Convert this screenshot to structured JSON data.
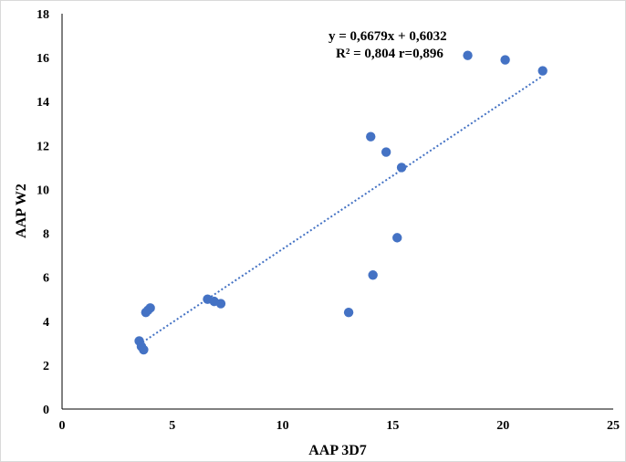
{
  "chart_data": {
    "type": "scatter",
    "title": "",
    "xlabel": "AAP 3D7",
    "ylabel": "AAP W2",
    "xlim": [
      0,
      25
    ],
    "ylim": [
      0,
      18
    ],
    "x_ticks": [
      0,
      5,
      10,
      15,
      20,
      25
    ],
    "y_ticks": [
      0,
      2,
      4,
      6,
      8,
      10,
      12,
      14,
      16,
      18
    ],
    "grid": false,
    "legend": "none",
    "series": [
      {
        "color": "#4472C4",
        "points": [
          {
            "x": 3.5,
            "y": 3.1
          },
          {
            "x": 3.6,
            "y": 2.85
          },
          {
            "x": 3.7,
            "y": 2.7
          },
          {
            "x": 3.8,
            "y": 4.4
          },
          {
            "x": 3.9,
            "y": 4.5
          },
          {
            "x": 4.0,
            "y": 4.6
          },
          {
            "x": 6.6,
            "y": 5.0
          },
          {
            "x": 6.9,
            "y": 4.9
          },
          {
            "x": 7.2,
            "y": 4.8
          },
          {
            "x": 13.0,
            "y": 4.4
          },
          {
            "x": 14.0,
            "y": 12.4
          },
          {
            "x": 14.1,
            "y": 6.1
          },
          {
            "x": 14.7,
            "y": 11.7
          },
          {
            "x": 15.2,
            "y": 7.8
          },
          {
            "x": 15.4,
            "y": 11.0
          },
          {
            "x": 18.4,
            "y": 16.1
          },
          {
            "x": 20.1,
            "y": 15.9
          },
          {
            "x": 21.8,
            "y": 15.4
          }
        ]
      }
    ],
    "trendline": {
      "type": "linear",
      "slope": 0.6679,
      "intercept": 0.6032,
      "x_range": [
        3.5,
        21.8
      ],
      "color": "#4472C4",
      "style": "dotted"
    },
    "annotation": {
      "equation": "y = 0,6679x + 0,6032",
      "stats": "R² = 0,804 r=0,896"
    }
  }
}
